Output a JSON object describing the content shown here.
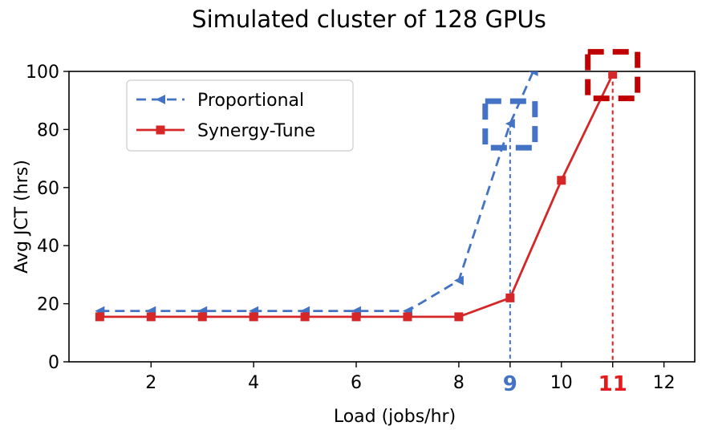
{
  "chart_data": {
    "type": "line",
    "title": "Simulated cluster of 128 GPUs",
    "xlabel": "Load (jobs/hr)",
    "ylabel": "Avg JCT (hrs)",
    "xlim": [
      0.4,
      12.6
    ],
    "ylim": [
      0,
      100
    ],
    "x_ticks": [
      2,
      4,
      6,
      8,
      10,
      12
    ],
    "y_ticks": [
      0,
      20,
      40,
      60,
      80,
      100
    ],
    "highlight_ticks": [
      {
        "label": "9",
        "x": 9,
        "color": "#4472C4"
      },
      {
        "label": "11",
        "x": 11,
        "color": "#E8191B"
      }
    ],
    "grid": false,
    "legend_position": "top-left",
    "series": [
      {
        "name": "Proportional",
        "color": "#4472C4",
        "style": "dashed",
        "marker": "triangle-left",
        "x": [
          1,
          2,
          3,
          4,
          5,
          6,
          7,
          8,
          9,
          9.45
        ],
        "y": [
          17.5,
          17.5,
          17.5,
          17.5,
          17.5,
          17.5,
          17.5,
          28,
          82,
          100
        ]
      },
      {
        "name": "Synergy-Tune",
        "color": "#D62728",
        "style": "solid",
        "marker": "square",
        "x": [
          1,
          2,
          3,
          4,
          5,
          6,
          7,
          8,
          9,
          10,
          11
        ],
        "y": [
          15.5,
          15.5,
          15.5,
          15.5,
          15.5,
          15.5,
          15.5,
          15.5,
          22,
          62.5,
          99
        ]
      }
    ],
    "annotations": [
      {
        "type": "dashed-box",
        "x": 9,
        "y": 82,
        "color": "#4472C4"
      },
      {
        "type": "dashed-box",
        "x": 11,
        "y": 99,
        "color": "#C00000"
      },
      {
        "type": "vertical-dotted-line",
        "x": 9,
        "y": 82,
        "color": "#4472C4"
      },
      {
        "type": "vertical-dotted-line",
        "x": 11,
        "y": 99,
        "color": "#E8191B"
      }
    ]
  }
}
